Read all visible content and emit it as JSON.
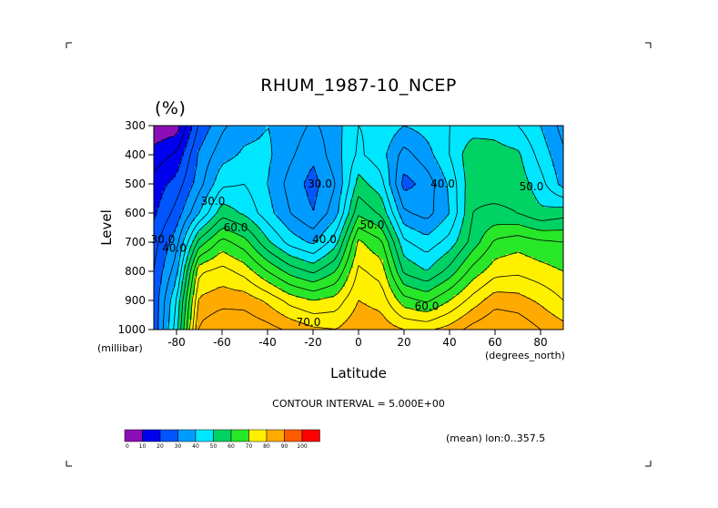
{
  "chart_data": {
    "type": "heatmap",
    "title": "RHUM_1987-10_NCEP",
    "units_label": "(%)",
    "xlabel": "Latitude",
    "x_units_label": "(degrees_north)",
    "ylabel": "Level",
    "y_units_label": "(millibar)",
    "xlim": [
      -90,
      90
    ],
    "ylim": [
      1000,
      300
    ],
    "x_ticks": [
      -80,
      -60,
      -40,
      -20,
      0,
      20,
      40,
      60,
      80
    ],
    "x_tick_labels": [
      "-80",
      "-60",
      "-40",
      "-20",
      "0",
      "20",
      "40",
      "60",
      "80"
    ],
    "y_ticks": [
      300,
      400,
      500,
      600,
      700,
      800,
      900,
      1000
    ],
    "y_tick_labels": [
      "300",
      "400",
      "500",
      "600",
      "700",
      "800",
      "900",
      "1000"
    ],
    "x": [
      -90,
      -80,
      -70,
      -60,
      -50,
      -40,
      -30,
      -20,
      -10,
      0,
      10,
      20,
      30,
      40,
      50,
      60,
      70,
      80,
      90
    ],
    "y": [
      1000,
      900,
      800,
      700,
      600,
      500,
      400,
      300
    ],
    "z": [
      [
        26,
        48,
        86,
        90,
        89,
        87,
        84,
        81,
        80,
        84,
        83,
        80,
        79,
        82,
        87,
        90,
        89,
        85,
        82
      ],
      [
        26,
        45,
        81,
        83,
        83,
        79,
        73,
        70,
        72,
        80,
        78,
        67,
        64,
        70,
        77,
        83,
        82,
        79,
        75
      ],
      [
        25,
        38,
        74,
        77,
        73,
        65,
        58,
        54,
        60,
        76,
        73,
        54,
        50,
        57,
        67,
        73,
        74,
        72,
        70
      ],
      [
        23,
        33,
        57,
        67,
        62,
        51,
        43,
        39,
        48,
        71,
        66,
        46,
        42,
        47,
        57,
        66,
        68,
        66,
        65
      ],
      [
        19,
        27,
        40,
        53,
        49,
        42,
        35,
        30,
        38,
        59,
        54,
        36,
        33,
        40,
        55,
        56,
        55,
        51,
        53
      ],
      [
        17,
        22,
        33,
        44,
        45,
        40,
        33,
        28,
        35,
        52,
        47,
        28,
        32,
        41,
        54,
        53,
        53,
        47,
        38
      ],
      [
        12,
        16,
        31,
        38,
        41,
        41,
        36,
        31,
        38,
        46,
        42,
        33,
        38,
        45,
        54,
        52,
        51,
        43,
        36
      ],
      [
        6,
        7,
        26,
        34,
        38,
        40,
        38,
        34,
        38,
        45,
        44,
        40,
        42,
        45,
        47,
        48,
        45,
        40,
        33
      ]
    ],
    "contour_interval": 5,
    "contour_labels": [
      {
        "text": "30.0",
        "lat": -17,
        "lev": 500
      },
      {
        "text": "40.0",
        "lat": 37,
        "lev": 500
      },
      {
        "text": "50.0",
        "lat": 76,
        "lev": 510
      },
      {
        "text": "30.0",
        "lat": -64,
        "lev": 560
      },
      {
        "text": "50.0",
        "lat": 6,
        "lev": 640
      },
      {
        "text": "40.0",
        "lat": -15,
        "lev": 690
      },
      {
        "text": "60.0",
        "lat": -54,
        "lev": 650
      },
      {
        "text": "30.0",
        "lat": -86,
        "lev": 690
      },
      {
        "text": "40.0",
        "lat": -81,
        "lev": 720
      },
      {
        "text": "60.0",
        "lat": 30,
        "lev": 920
      },
      {
        "text": "70.0",
        "lat": -22,
        "lev": 975
      }
    ],
    "colorbar": {
      "levels": [
        0,
        10,
        20,
        30,
        40,
        50,
        60,
        70,
        80,
        90,
        100
      ],
      "labels": [
        "0",
        "10",
        "20",
        "30",
        "40",
        "50",
        "60",
        "70",
        "80",
        "90",
        "100"
      ],
      "colors": [
        "#8c0fb5",
        "#0000ee",
        "#0055ff",
        "#009bff",
        "#00e6ff",
        "#00d264",
        "#28e628",
        "#fff000",
        "#ffaa00",
        "#ff5a00",
        "#ff0000"
      ]
    },
    "grid": false,
    "legend": "bottom-left"
  },
  "footer": {
    "contour_interval_text": "CONTOUR INTERVAL = 5.000E+00",
    "mean_text": "(mean) lon:0..357.5"
  }
}
